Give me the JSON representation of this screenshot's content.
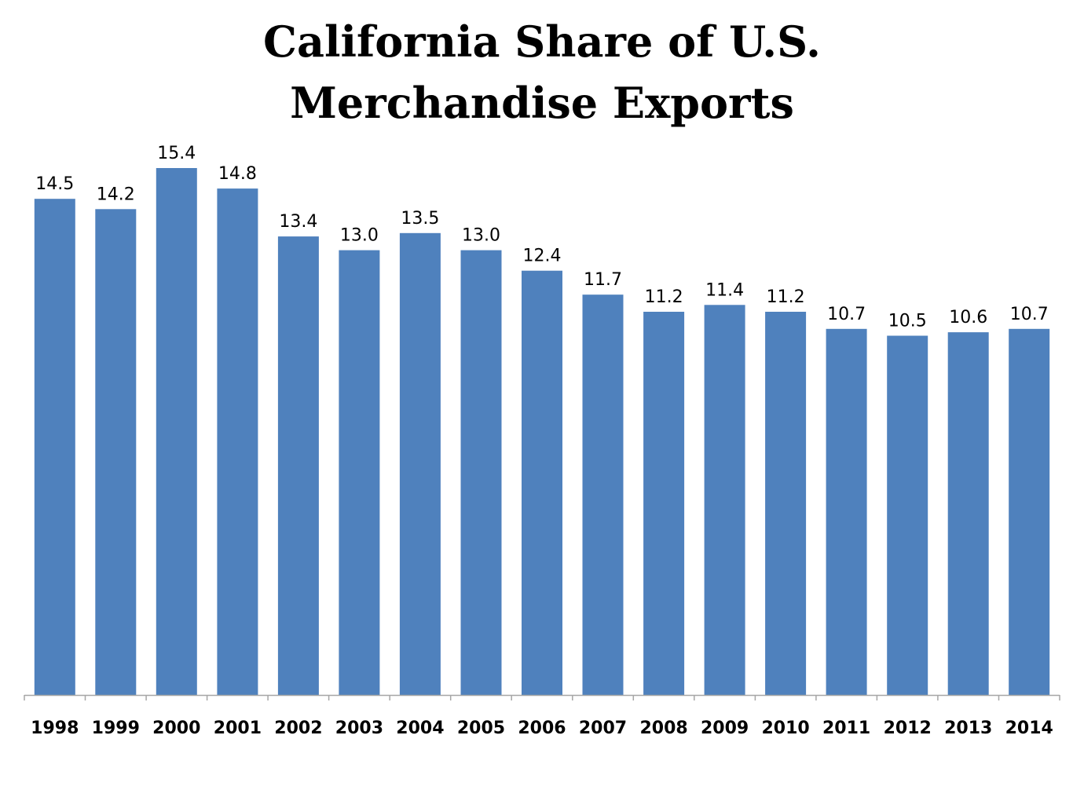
{
  "chart_data": {
    "type": "bar",
    "title": "California Share of U.S.",
    "subtitle": "Merchandise Exports",
    "xlabel": "",
    "ylabel": "",
    "categories": [
      "1998",
      "1999",
      "2000",
      "2001",
      "2002",
      "2003",
      "2004",
      "2005",
      "2006",
      "2007",
      "2008",
      "2009",
      "2010",
      "2011",
      "2012",
      "2013",
      "2014"
    ],
    "values": [
      14.5,
      14.2,
      15.4,
      14.8,
      13.4,
      13.0,
      13.5,
      13.0,
      12.4,
      11.7,
      11.2,
      11.4,
      11.2,
      10.7,
      10.5,
      10.6,
      10.7
    ],
    "value_labels": [
      "14.5",
      "14.2",
      "15.4",
      "14.8",
      "13.4",
      "13.0",
      "13.5",
      "13.0",
      "12.4",
      "11.7",
      "11.2",
      "11.4",
      "11.2",
      "10.7",
      "10.5",
      "10.6",
      "10.7"
    ],
    "ylim": [
      0,
      15.4
    ],
    "grid": false,
    "legend": "none",
    "bar_color": "#4f81bd",
    "axis_color": "#a6a6a6"
  }
}
